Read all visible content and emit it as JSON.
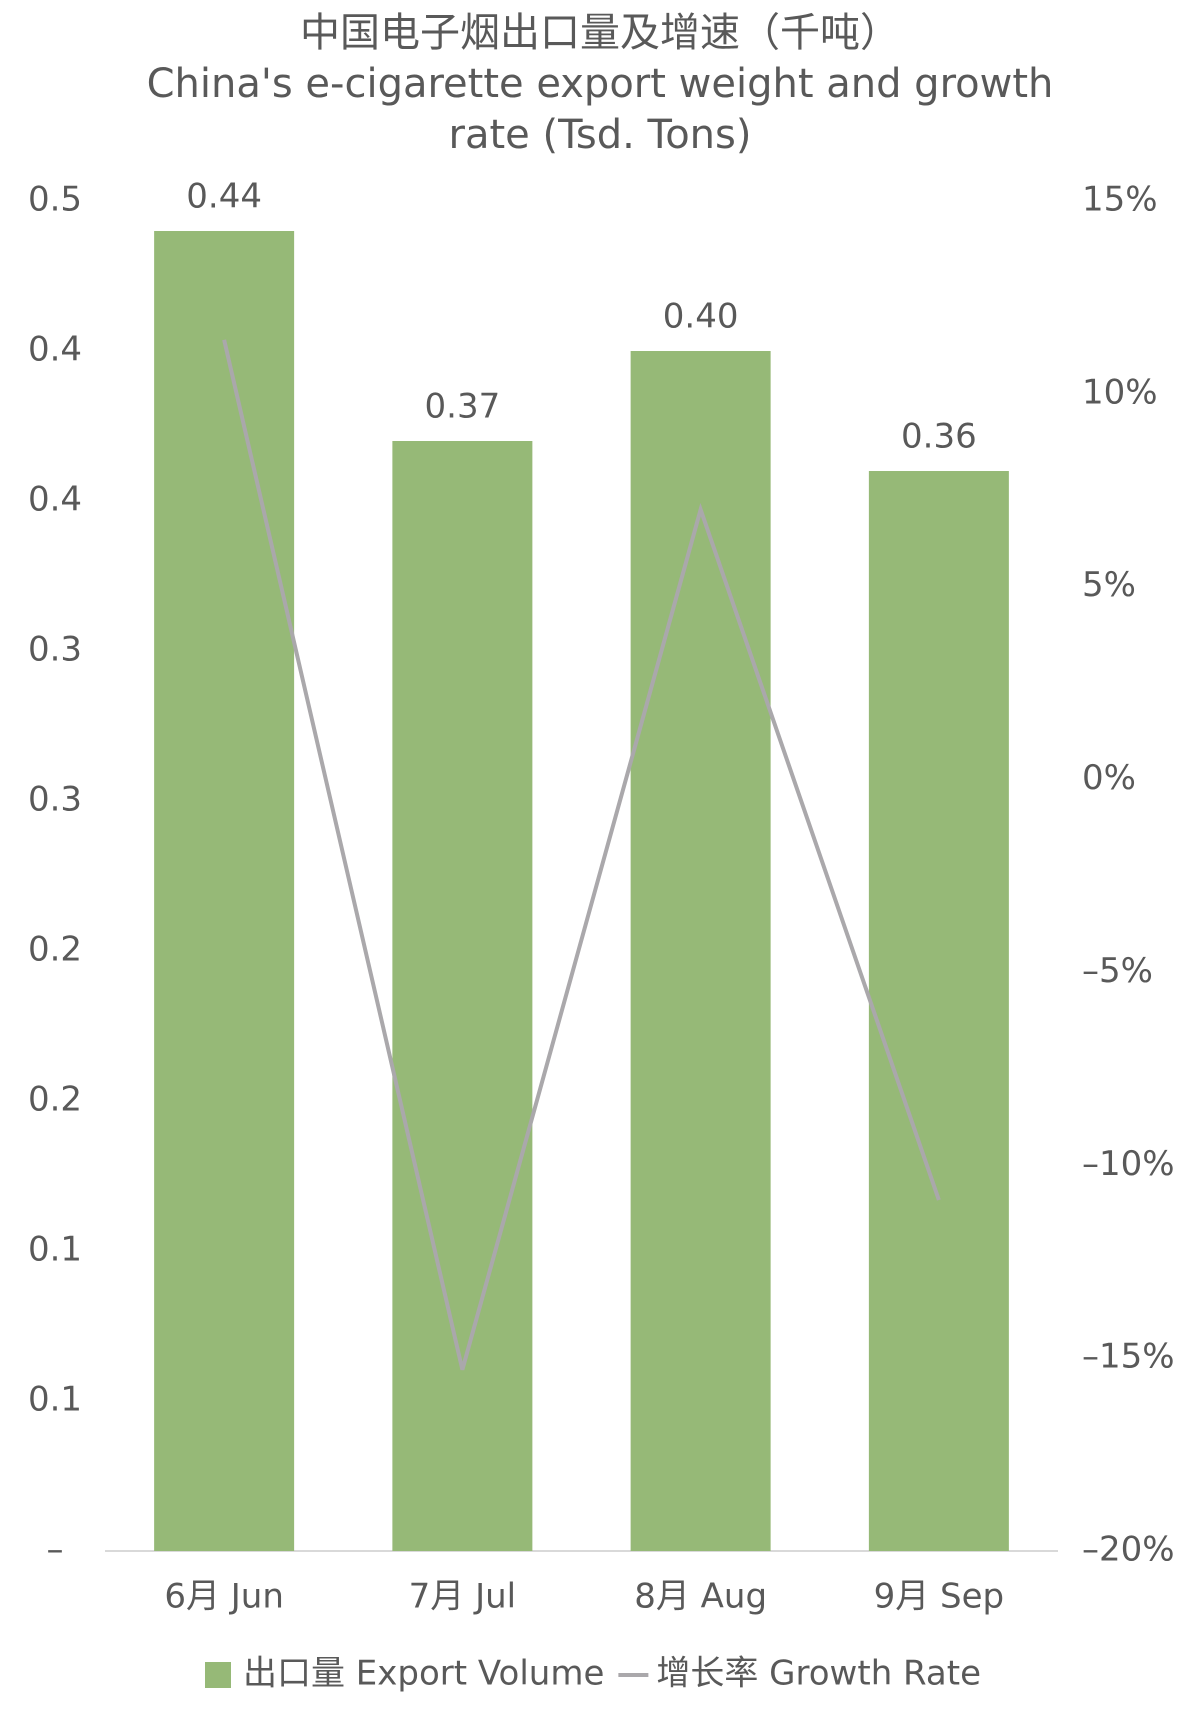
{
  "chart_data": {
    "type": "bar",
    "title": "中国电子烟出口量及增速（千吨）",
    "subtitle": "China's e-cigarette export weight and growth rate (Tsd. Tons)",
    "categories": [
      "6月 Jun",
      "7月 Jul",
      "8月 Aug",
      "9月 Sep"
    ],
    "series": [
      {
        "name": "出口量 Export Volume",
        "type": "bar",
        "color": "#96b977",
        "values": [
          0.44,
          0.37,
          0.4,
          0.36
        ],
        "value_labels": [
          "0.44",
          "0.37",
          "0.40",
          "0.36"
        ]
      },
      {
        "name": "增长率 Growth Rate",
        "type": "line",
        "axis": "y2",
        "color": "#aaa8ab",
        "values": [
          11.4,
          -15.3,
          7.0,
          -10.9
        ]
      }
    ],
    "ylim": [
      0,
      0.45
    ],
    "yticks": [
      {
        "value": 0,
        "label": "–"
      },
      {
        "value": 0.05,
        "label": "0.1"
      },
      {
        "value": 0.1,
        "label": "0.1"
      },
      {
        "value": 0.15,
        "label": "0.2"
      },
      {
        "value": 0.2,
        "label": "0.2"
      },
      {
        "value": 0.25,
        "label": "0.3"
      },
      {
        "value": 0.3,
        "label": "0.3"
      },
      {
        "value": 0.35,
        "label": "0.4"
      },
      {
        "value": 0.4,
        "label": "0.4"
      },
      {
        "value": 0.45,
        "label": "0.5"
      }
    ],
    "y2lim": [
      -20,
      15
    ],
    "y2ticks": [
      {
        "value": -20,
        "label": "–20%"
      },
      {
        "value": -15,
        "label": "–15%"
      },
      {
        "value": -10,
        "label": "–10%"
      },
      {
        "value": -5,
        "label": "–5%"
      },
      {
        "value": 0,
        "label": "0%"
      },
      {
        "value": 5,
        "label": "5%"
      },
      {
        "value": 10,
        "label": "10%"
      },
      {
        "value": 15,
        "label": "15%"
      }
    ],
    "grid": false,
    "legend": "bottom"
  }
}
